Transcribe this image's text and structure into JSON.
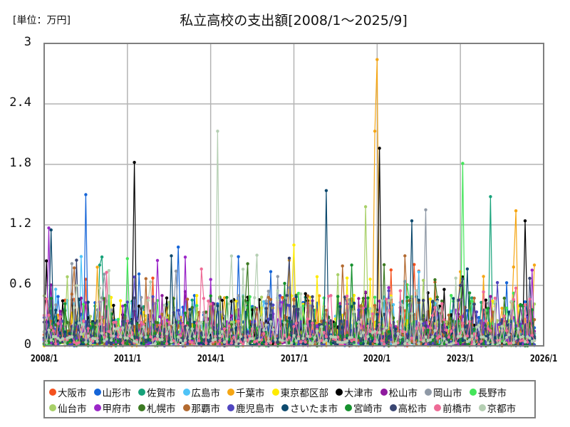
{
  "header": {
    "unit_label": "[単位：万円]",
    "title": "私立高校の支出額[2008/1～2025/9]"
  },
  "chart_data": {
    "type": "line",
    "title": "私立高校の支出額[2008/1～2025/9]",
    "xlabel": "",
    "ylabel": "[単位：万円]",
    "ylim": [
      0,
      3
    ],
    "xlim": [
      "2008/1",
      "2026/1"
    ],
    "grid": true,
    "legend_position": "bottom",
    "y_ticks": [
      "0",
      "0.6",
      "1.2",
      "1.8",
      "2.4",
      "3"
    ],
    "x_ticks": [
      "2008/1",
      "2011/1",
      "2014/1",
      "2017/1",
      "2020/1",
      "2023/1",
      "2026/1"
    ],
    "period": {
      "start": "2008/1",
      "end": "2025/9",
      "months": 213
    },
    "series": [
      {
        "name": "大阪市",
        "color": "#f4511e",
        "notable_points": []
      },
      {
        "name": "山形市",
        "color": "#1565d8",
        "notable_points": [
          {
            "x": "2009/7",
            "y": 1.5
          },
          {
            "x": "2012/11",
            "y": 0.98
          }
        ]
      },
      {
        "name": "佐賀市",
        "color": "#17a27a",
        "notable_points": [
          {
            "x": "2024/2",
            "y": 1.48
          }
        ]
      },
      {
        "name": "広島市",
        "color": "#4fc3f7",
        "notable_points": []
      },
      {
        "name": "千葉市",
        "color": "#f5a614",
        "notable_points": [
          {
            "x": "2019/12",
            "y": 2.13
          },
          {
            "x": "2020/1",
            "y": 2.84
          },
          {
            "x": "2025/1",
            "y": 1.34
          }
        ]
      },
      {
        "name": "東京都区部",
        "color": "#ffeb00",
        "notable_points": [
          {
            "x": "2017/1",
            "y": 1.0
          }
        ]
      },
      {
        "name": "大津市",
        "color": "#000000",
        "notable_points": [
          {
            "x": "2011/4",
            "y": 1.82
          },
          {
            "x": "2020/2",
            "y": 1.96
          },
          {
            "x": "2025/5",
            "y": 1.24
          }
        ]
      },
      {
        "name": "松山市",
        "color": "#8e1a9e",
        "notable_points": []
      },
      {
        "name": "岡山市",
        "color": "#8f99a6",
        "notable_points": [
          {
            "x": "2021/10",
            "y": 1.35
          }
        ]
      },
      {
        "name": "長野市",
        "color": "#44e55a",
        "notable_points": [
          {
            "x": "2023/2",
            "y": 1.81
          }
        ]
      },
      {
        "name": "仙台市",
        "color": "#a8d068",
        "notable_points": [
          {
            "x": "2019/8",
            "y": 1.38
          }
        ]
      },
      {
        "name": "甲府市",
        "color": "#9b27c8",
        "notable_points": [
          {
            "x": "2008/3",
            "y": 1.17
          }
        ]
      },
      {
        "name": "札幌市",
        "color": "#3c7a22",
        "notable_points": []
      },
      {
        "name": "那覇市",
        "color": "#b36a30",
        "notable_points": []
      },
      {
        "name": "鹿児島市",
        "color": "#5046c0",
        "notable_points": []
      },
      {
        "name": "さいたま市",
        "color": "#0d4a6e",
        "notable_points": [
          {
            "x": "2008/4",
            "y": 1.15
          },
          {
            "x": "2018/3",
            "y": 1.54
          },
          {
            "x": "2021/4",
            "y": 1.24
          }
        ]
      },
      {
        "name": "宮崎市",
        "color": "#16912e",
        "notable_points": []
      },
      {
        "name": "高松市",
        "color": "#3a4672",
        "notable_points": []
      },
      {
        "name": "前橋市",
        "color": "#ee6b96",
        "notable_points": []
      },
      {
        "name": "京都市",
        "color": "#b5cfb3",
        "notable_points": [
          {
            "x": "2014/4",
            "y": 2.13
          }
        ]
      }
    ],
    "note": "Dense monthly series (~213 points each); most values fall between 0 and 0.6 with occasional spikes listed as notable_points."
  },
  "axis": {
    "y_labels": [
      "3",
      "2.4",
      "1.8",
      "1.2",
      "0.6",
      "0"
    ],
    "x_labels": [
      "2008/1",
      "2011/1",
      "2014/1",
      "2017/1",
      "2020/1",
      "2023/1",
      "2026/1"
    ]
  },
  "legend": {
    "row1": [
      {
        "name": "大阪市",
        "color": "#f4511e"
      },
      {
        "name": "山形市",
        "color": "#1565d8"
      },
      {
        "name": "佐賀市",
        "color": "#17a27a"
      },
      {
        "name": "広島市",
        "color": "#4fc3f7"
      },
      {
        "name": "千葉市",
        "color": "#f5a614"
      },
      {
        "name": "東京都区部",
        "color": "#ffeb00"
      },
      {
        "name": "大津市",
        "color": "#000000"
      },
      {
        "name": "松山市",
        "color": "#8e1a9e"
      },
      {
        "name": "岡山市",
        "color": "#8f99a6"
      },
      {
        "name": "長野市",
        "color": "#44e55a"
      }
    ],
    "row2": [
      {
        "name": "仙台市",
        "color": "#a8d068"
      },
      {
        "name": "甲府市",
        "color": "#9b27c8"
      },
      {
        "name": "札幌市",
        "color": "#3c7a22"
      },
      {
        "name": "那覇市",
        "color": "#b36a30"
      },
      {
        "name": "鹿児島市",
        "color": "#5046c0"
      },
      {
        "name": "さいたま市",
        "color": "#0d4a6e"
      },
      {
        "name": "宮崎市",
        "color": "#16912e"
      },
      {
        "name": "高松市",
        "color": "#3a4672"
      },
      {
        "name": "前橋市",
        "color": "#ee6b96"
      },
      {
        "name": "京都市",
        "color": "#b5cfb3"
      }
    ]
  }
}
